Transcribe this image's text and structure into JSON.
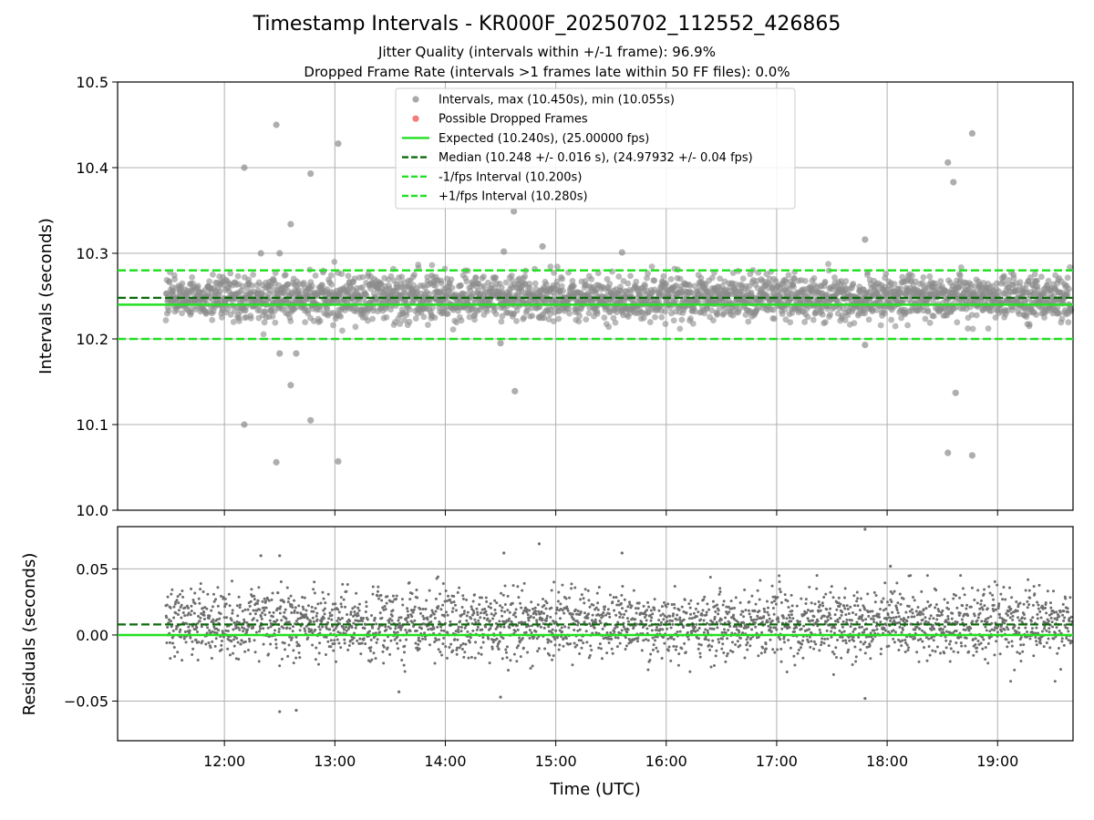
{
  "chart_data": [
    {
      "type": "scatter",
      "title": "Timestamp Intervals - KR000F_20250702_112552_426865",
      "subtitle_lines": [
        "Jitter Quality (intervals within +/-1 frame): 96.9%",
        "Dropped Frame Rate (intervals >1 frames late within 50 FF files): 0.0%"
      ],
      "ylabel": "Intervals (seconds)",
      "ylim": [
        10.0,
        10.5
      ],
      "yticks": [
        "10.0",
        "10.1",
        "10.2",
        "10.3",
        "10.4",
        "10.5"
      ],
      "xlim_hours": [
        11.033,
        19.683
      ],
      "grid": true,
      "legend_position": "top-center",
      "legend": [
        {
          "label": "Intervals, max (10.450s), min (10.055s)",
          "kind": "marker",
          "color": "#8c8c8c"
        },
        {
          "label": "Possible Dropped Frames",
          "kind": "marker",
          "color": "#f05050"
        },
        {
          "label": "Expected (10.240s), (25.00000 fps)",
          "kind": "solid",
          "color": "#22e022"
        },
        {
          "label": "Median (10.248 +/- 0.016 s), (24.97932 +/- 0.04 fps)",
          "kind": "dashed",
          "color": "#0b6b0b"
        },
        {
          "label": "-1/fps Interval (10.200s)",
          "kind": "dashed",
          "color": "#22e022"
        },
        {
          "label": "+1/fps Interval (10.280s)",
          "kind": "dashed",
          "color": "#22e022"
        }
      ],
      "reference_lines": {
        "expected": 10.24,
        "median": 10.248,
        "minus_one_fps": 10.2,
        "plus_one_fps": 10.28
      },
      "series": [
        {
          "name": "Intervals",
          "time_range_hours": [
            11.47,
            19.68
          ],
          "point_count": 2880,
          "typical_range": [
            10.2,
            10.29
          ],
          "outliers": [
            {
              "x": 12.47,
              "y": 10.45
            },
            {
              "x": 13.03,
              "y": 10.428
            },
            {
              "x": 12.18,
              "y": 10.4
            },
            {
              "x": 12.78,
              "y": 10.393
            },
            {
              "x": 18.77,
              "y": 10.44
            },
            {
              "x": 18.55,
              "y": 10.406
            },
            {
              "x": 18.6,
              "y": 10.383
            },
            {
              "x": 14.62,
              "y": 10.349
            },
            {
              "x": 12.6,
              "y": 10.334
            },
            {
              "x": 17.8,
              "y": 10.316
            },
            {
              "x": 14.88,
              "y": 10.308
            },
            {
              "x": 14.53,
              "y": 10.302
            },
            {
              "x": 15.6,
              "y": 10.301
            },
            {
              "x": 12.33,
              "y": 10.3
            },
            {
              "x": 12.5,
              "y": 10.3
            },
            {
              "x": 12.5,
              "y": 10.183
            },
            {
              "x": 12.65,
              "y": 10.183
            },
            {
              "x": 12.6,
              "y": 10.146
            },
            {
              "x": 14.63,
              "y": 10.139
            },
            {
              "x": 18.62,
              "y": 10.137
            },
            {
              "x": 12.78,
              "y": 10.105
            },
            {
              "x": 12.18,
              "y": 10.1
            },
            {
              "x": 18.55,
              "y": 10.067
            },
            {
              "x": 18.77,
              "y": 10.064
            },
            {
              "x": 13.03,
              "y": 10.057
            },
            {
              "x": 12.47,
              "y": 10.056
            },
            {
              "x": 14.5,
              "y": 10.195
            },
            {
              "x": 17.8,
              "y": 10.193
            }
          ]
        },
        {
          "name": "Possible Dropped Frames",
          "values": []
        }
      ]
    },
    {
      "type": "scatter",
      "ylabel": "Residuals (seconds)",
      "xlabel": "Time (UTC)",
      "ylim": [
        -0.08,
        0.082
      ],
      "yticks": [
        "−0.05",
        "0.00",
        "0.05"
      ],
      "xticks": [
        "12:00",
        "13:00",
        "14:00",
        "15:00",
        "16:00",
        "17:00",
        "18:00",
        "19:00"
      ],
      "grid": true,
      "reference_lines": {
        "expected": 0.0,
        "median": 0.008
      },
      "series": [
        {
          "name": "Residuals",
          "typical_range": [
            -0.035,
            0.045
          ],
          "outliers": [
            {
              "x": 17.8,
              "y": 0.08
            },
            {
              "x": 14.85,
              "y": 0.069
            },
            {
              "x": 14.53,
              "y": 0.062
            },
            {
              "x": 15.6,
              "y": 0.062
            },
            {
              "x": 12.33,
              "y": 0.06
            },
            {
              "x": 12.5,
              "y": 0.06
            },
            {
              "x": 18.03,
              "y": 0.052
            },
            {
              "x": 12.5,
              "y": -0.058
            },
            {
              "x": 12.65,
              "y": -0.057
            },
            {
              "x": 14.5,
              "y": -0.047
            },
            {
              "x": 17.8,
              "y": -0.048
            },
            {
              "x": 13.58,
              "y": -0.043
            }
          ]
        }
      ]
    }
  ]
}
